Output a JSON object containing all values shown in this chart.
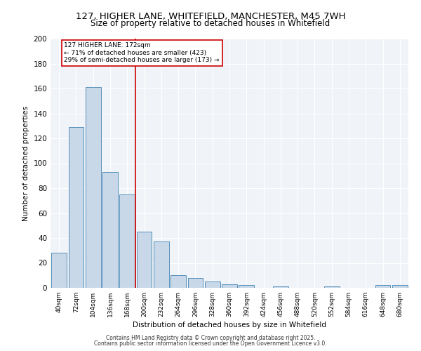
{
  "title_line1": "127, HIGHER LANE, WHITEFIELD, MANCHESTER, M45 7WH",
  "title_line2": "Size of property relative to detached houses in Whitefield",
  "xlabel": "Distribution of detached houses by size in Whitefield",
  "ylabel": "Number of detached properties",
  "bar_labels": [
    "40sqm",
    "72sqm",
    "104sqm",
    "136sqm",
    "168sqm",
    "200sqm",
    "232sqm",
    "264sqm",
    "296sqm",
    "328sqm",
    "360sqm",
    "392sqm",
    "424sqm",
    "456sqm",
    "488sqm",
    "520sqm",
    "552sqm",
    "584sqm",
    "616sqm",
    "648sqm",
    "680sqm"
  ],
  "bar_values": [
    28,
    129,
    161,
    93,
    75,
    45,
    37,
    10,
    8,
    5,
    3,
    2,
    0,
    1,
    0,
    0,
    1,
    0,
    0,
    2,
    2
  ],
  "bar_color": "#c8d8e8",
  "bar_edge_color": "#5590bb",
  "property_label": "127 HIGHER LANE: 172sqm",
  "annotation_line1": "← 71% of detached houses are smaller (423)",
  "annotation_line2": "29% of semi-detached houses are larger (173) →",
  "vline_color": "#cc0000",
  "vline_x": 4.5,
  "annotation_box_color": "#cc0000",
  "ylim": [
    0,
    200
  ],
  "yticks": [
    0,
    20,
    40,
    60,
    80,
    100,
    120,
    140,
    160,
    180,
    200
  ],
  "background_color": "#f0f4f8",
  "footer_line1": "Contains HM Land Registry data © Crown copyright and database right 2025.",
  "footer_line2": "Contains public sector information licensed under the Open Government Licence v3.0."
}
